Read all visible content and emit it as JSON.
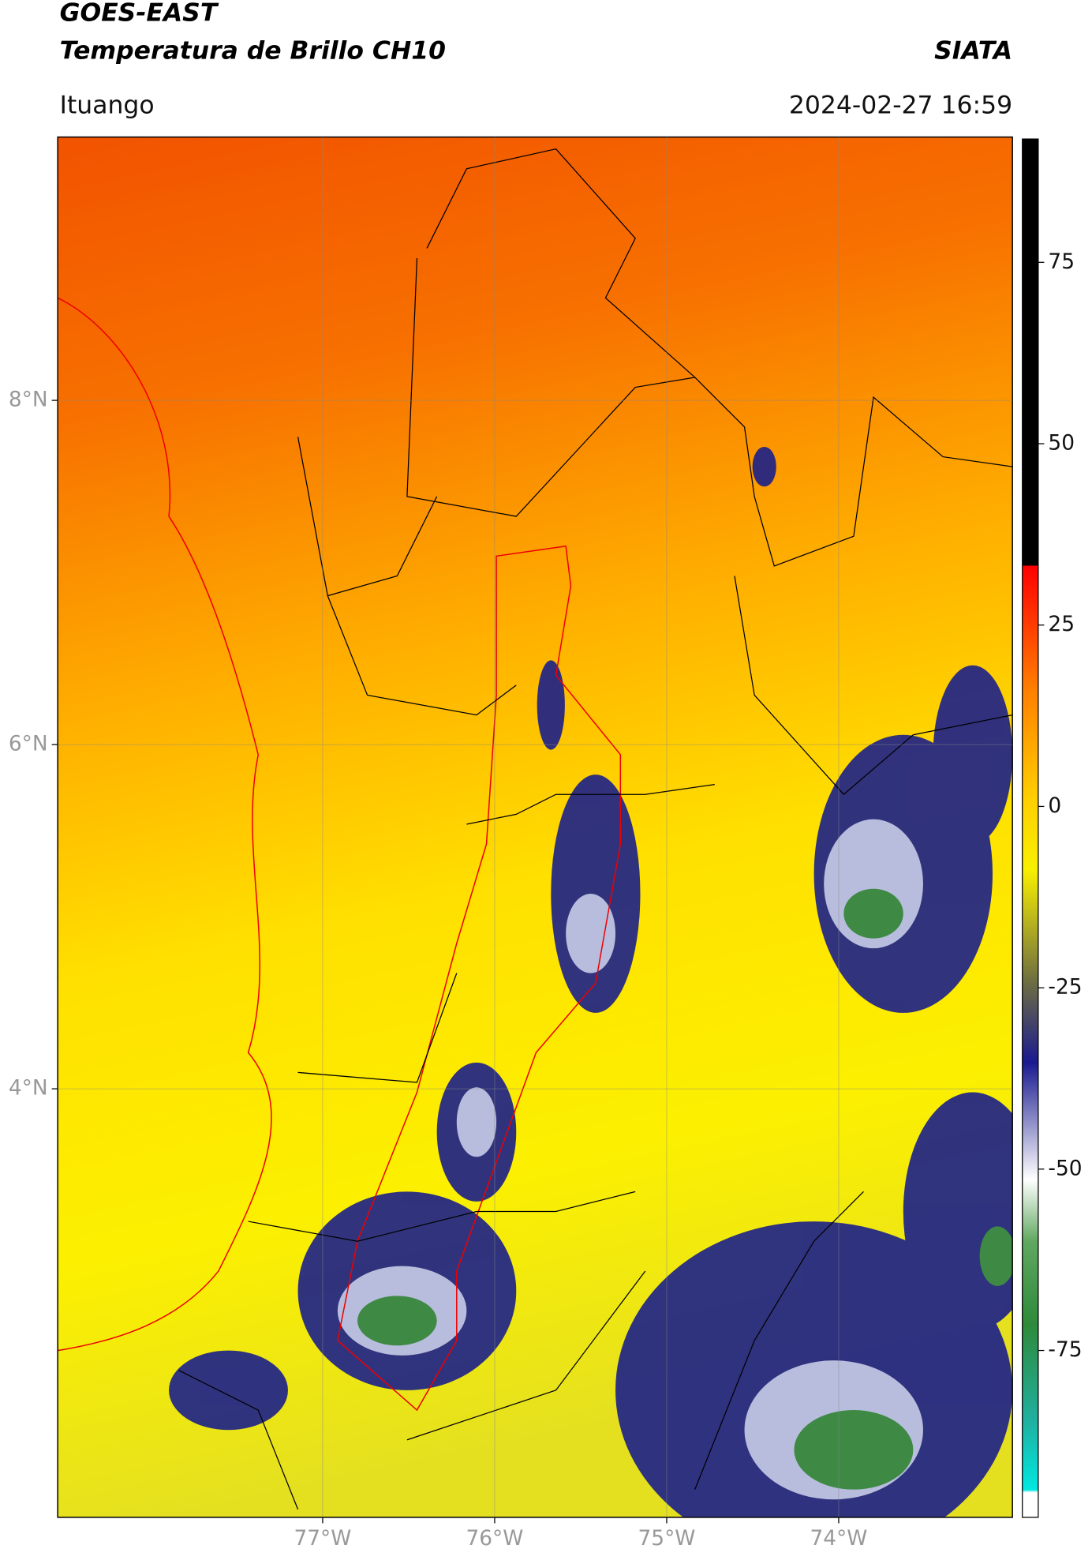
{
  "header": {
    "title": "GOES-EAST",
    "subtitle": "Temperatura de Brillo CH10",
    "brand": "SIATA",
    "location": "Ituango",
    "datetime": "2024-02-27 16:59"
  },
  "map": {
    "xlim": [
      -78.54,
      -72.99
    ],
    "ylim": [
      1.51,
      9.53
    ],
    "xticks": [
      {
        "value": -77,
        "label": "77°W"
      },
      {
        "value": -76,
        "label": "76°W"
      },
      {
        "value": -75,
        "label": "75°W"
      },
      {
        "value": -74,
        "label": "74°W"
      }
    ],
    "yticks": [
      {
        "value": 4,
        "label": "4°N"
      },
      {
        "value": 6,
        "label": "6°N"
      },
      {
        "value": 8,
        "label": "8°N"
      }
    ]
  },
  "colorbar": {
    "lim": [
      -98,
      92
    ],
    "ticks": [
      -75,
      -50,
      -25,
      0,
      25,
      50,
      75
    ]
  }
}
